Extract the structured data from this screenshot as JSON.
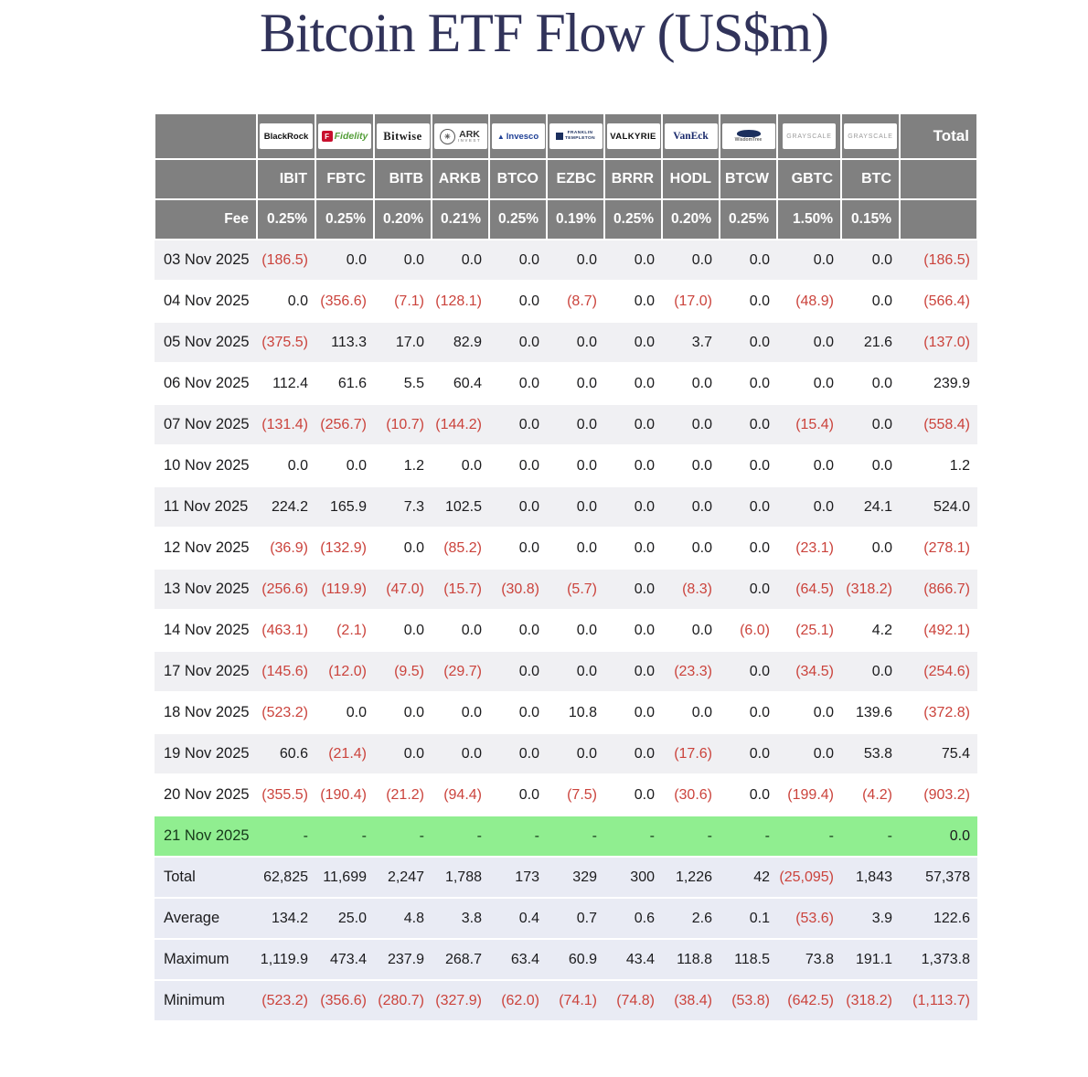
{
  "colors": {
    "title_navy": "#31335a",
    "header_gray": "#808080",
    "negative_red": "#cb433c",
    "highlight_green": "#90ee90",
    "summary_lavender": "#e9ebf4",
    "stripe_gray": "#f0f0f3"
  },
  "chart_data": {
    "type": "table",
    "title": "Bitcoin ETF Flow (US$m)",
    "fee_row_label": "Fee",
    "total_column_label": "Total",
    "columns": [
      {
        "ticker": "IBIT",
        "provider": "BlackRock",
        "logo": "blackrock",
        "fee": "0.25%"
      },
      {
        "ticker": "FBTC",
        "provider": "Fidelity",
        "logo": "fidelity",
        "fee": "0.25%"
      },
      {
        "ticker": "BITB",
        "provider": "Bitwise",
        "logo": "bitwise",
        "fee": "0.20%"
      },
      {
        "ticker": "ARKB",
        "provider": "ARK Invest",
        "logo": "ark",
        "fee": "0.21%"
      },
      {
        "ticker": "BTCO",
        "provider": "Invesco",
        "logo": "invesco",
        "fee": "0.25%"
      },
      {
        "ticker": "EZBC",
        "provider": "Franklin Templeton",
        "logo": "franklin",
        "fee": "0.19%"
      },
      {
        "ticker": "BRRR",
        "provider": "Valkyrie",
        "logo": "valkyrie",
        "fee": "0.25%"
      },
      {
        "ticker": "HODL",
        "provider": "VanEck",
        "logo": "vaneck",
        "fee": "0.20%"
      },
      {
        "ticker": "BTCW",
        "provider": "WisdomTree",
        "logo": "wisdomtree",
        "fee": "0.25%"
      },
      {
        "ticker": "GBTC",
        "provider": "Grayscale",
        "logo": "grayscale",
        "fee": "1.50%"
      },
      {
        "ticker": "BTC",
        "provider": "Grayscale",
        "logo": "grayscale",
        "fee": "0.15%"
      }
    ],
    "rows": [
      {
        "date": "03 Nov 2025",
        "values": [
          "(186.5)",
          "0.0",
          "0.0",
          "0.0",
          "0.0",
          "0.0",
          "0.0",
          "0.0",
          "0.0",
          "0.0",
          "0.0"
        ],
        "total": "(186.5)",
        "highlight": false
      },
      {
        "date": "04 Nov 2025",
        "values": [
          "0.0",
          "(356.6)",
          "(7.1)",
          "(128.1)",
          "0.0",
          "(8.7)",
          "0.0",
          "(17.0)",
          "0.0",
          "(48.9)",
          "0.0"
        ],
        "total": "(566.4)",
        "highlight": false
      },
      {
        "date": "05 Nov 2025",
        "values": [
          "(375.5)",
          "113.3",
          "17.0",
          "82.9",
          "0.0",
          "0.0",
          "0.0",
          "3.7",
          "0.0",
          "0.0",
          "21.6"
        ],
        "total": "(137.0)",
        "highlight": false
      },
      {
        "date": "06 Nov 2025",
        "values": [
          "112.4",
          "61.6",
          "5.5",
          "60.4",
          "0.0",
          "0.0",
          "0.0",
          "0.0",
          "0.0",
          "0.0",
          "0.0"
        ],
        "total": "239.9",
        "highlight": false
      },
      {
        "date": "07 Nov 2025",
        "values": [
          "(131.4)",
          "(256.7)",
          "(10.7)",
          "(144.2)",
          "0.0",
          "0.0",
          "0.0",
          "0.0",
          "0.0",
          "(15.4)",
          "0.0"
        ],
        "total": "(558.4)",
        "highlight": false
      },
      {
        "date": "10 Nov 2025",
        "values": [
          "0.0",
          "0.0",
          "1.2",
          "0.0",
          "0.0",
          "0.0",
          "0.0",
          "0.0",
          "0.0",
          "0.0",
          "0.0"
        ],
        "total": "1.2",
        "highlight": false
      },
      {
        "date": "11 Nov 2025",
        "values": [
          "224.2",
          "165.9",
          "7.3",
          "102.5",
          "0.0",
          "0.0",
          "0.0",
          "0.0",
          "0.0",
          "0.0",
          "24.1"
        ],
        "total": "524.0",
        "highlight": false
      },
      {
        "date": "12 Nov 2025",
        "values": [
          "(36.9)",
          "(132.9)",
          "0.0",
          "(85.2)",
          "0.0",
          "0.0",
          "0.0",
          "0.0",
          "0.0",
          "(23.1)",
          "0.0"
        ],
        "total": "(278.1)",
        "highlight": false
      },
      {
        "date": "13 Nov 2025",
        "values": [
          "(256.6)",
          "(119.9)",
          "(47.0)",
          "(15.7)",
          "(30.8)",
          "(5.7)",
          "0.0",
          "(8.3)",
          "0.0",
          "(64.5)",
          "(318.2)"
        ],
        "total": "(866.7)",
        "highlight": false
      },
      {
        "date": "14 Nov 2025",
        "values": [
          "(463.1)",
          "(2.1)",
          "0.0",
          "0.0",
          "0.0",
          "0.0",
          "0.0",
          "0.0",
          "(6.0)",
          "(25.1)",
          "4.2"
        ],
        "total": "(492.1)",
        "highlight": false
      },
      {
        "date": "17 Nov 2025",
        "values": [
          "(145.6)",
          "(12.0)",
          "(9.5)",
          "(29.7)",
          "0.0",
          "0.0",
          "0.0",
          "(23.3)",
          "0.0",
          "(34.5)",
          "0.0"
        ],
        "total": "(254.6)",
        "highlight": false
      },
      {
        "date": "18 Nov 2025",
        "values": [
          "(523.2)",
          "0.0",
          "0.0",
          "0.0",
          "0.0",
          "10.8",
          "0.0",
          "0.0",
          "0.0",
          "0.0",
          "139.6"
        ],
        "total": "(372.8)",
        "highlight": false
      },
      {
        "date": "19 Nov 2025",
        "values": [
          "60.6",
          "(21.4)",
          "0.0",
          "0.0",
          "0.0",
          "0.0",
          "0.0",
          "(17.6)",
          "0.0",
          "0.0",
          "53.8"
        ],
        "total": "75.4",
        "highlight": false
      },
      {
        "date": "20 Nov 2025",
        "values": [
          "(355.5)",
          "(190.4)",
          "(21.2)",
          "(94.4)",
          "0.0",
          "(7.5)",
          "0.0",
          "(30.6)",
          "0.0",
          "(199.4)",
          "(4.2)"
        ],
        "total": "(903.2)",
        "highlight": false
      },
      {
        "date": "21 Nov 2025",
        "values": [
          "-",
          "-",
          "-",
          "-",
          "-",
          "-",
          "-",
          "-",
          "-",
          "-",
          "-"
        ],
        "total": "0.0",
        "highlight": true
      }
    ],
    "summary_rows": [
      {
        "label": "Total",
        "values": [
          "62,825",
          "11,699",
          "2,247",
          "1,788",
          "173",
          "329",
          "300",
          "1,226",
          "42",
          "(25,095)",
          "1,843"
        ],
        "total": "57,378"
      },
      {
        "label": "Average",
        "values": [
          "134.2",
          "25.0",
          "4.8",
          "3.8",
          "0.4",
          "0.7",
          "0.6",
          "2.6",
          "0.1",
          "(53.6)",
          "3.9"
        ],
        "total": "122.6"
      },
      {
        "label": "Maximum",
        "values": [
          "1,119.9",
          "473.4",
          "237.9",
          "268.7",
          "63.4",
          "60.9",
          "43.4",
          "118.8",
          "118.5",
          "73.8",
          "191.1"
        ],
        "total": "1,373.8"
      },
      {
        "label": "Minimum",
        "values": [
          "(523.2)",
          "(356.6)",
          "(280.7)",
          "(327.9)",
          "(62.0)",
          "(74.1)",
          "(74.8)",
          "(38.4)",
          "(53.8)",
          "(642.5)",
          "(318.2)"
        ],
        "total": "(1,113.7)"
      }
    ]
  }
}
